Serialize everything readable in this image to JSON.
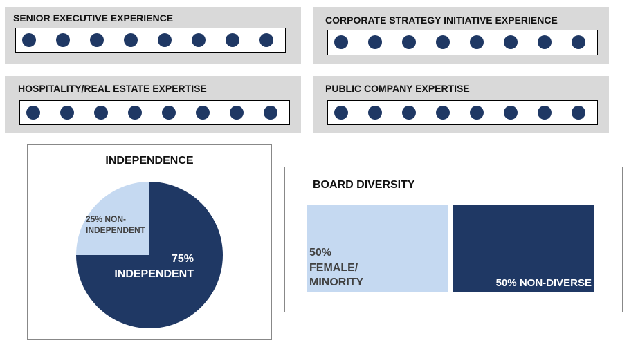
{
  "colors": {
    "dark": "#1f3864",
    "light": "#c5d9f1",
    "panel": "#d9d9d9"
  },
  "skills": [
    {
      "title": "SENIOR EXECUTIVE EXPERIENCE",
      "dots": 8
    },
    {
      "title": "CORPORATE STRATEGY INITIATIVE EXPERIENCE",
      "dots": 8
    },
    {
      "title": "HOSPITALITY/REAL ESTATE EXPERTISE",
      "dots": 8
    },
    {
      "title": "PUBLIC COMPANY EXPERTISE",
      "dots": 8
    }
  ],
  "chart_data": [
    {
      "type": "pie",
      "title": "INDEPENDENCE",
      "slices": [
        {
          "label": "75% INDEPENDENT",
          "value": 75,
          "color": "#1f3864"
        },
        {
          "label": "25% NON-INDEPENDENT",
          "value": 25,
          "color": "#c5d9f1"
        }
      ],
      "labels": {
        "independent_pct": "75%",
        "independent": "INDEPENDENT",
        "non_line1": "25% NON-",
        "non_line2": "INDEPENDENT"
      }
    },
    {
      "type": "bar",
      "title": "BOARD DIVERSITY",
      "categories": [
        "50% FEMALE/ MINORITY",
        "50% NON-DIVERSE"
      ],
      "values": [
        50,
        50
      ],
      "labels": {
        "fm1": "50%",
        "fm2": "FEMALE/",
        "fm3": "MINORITY",
        "nd": "50% NON-DIVERSE"
      }
    }
  ]
}
